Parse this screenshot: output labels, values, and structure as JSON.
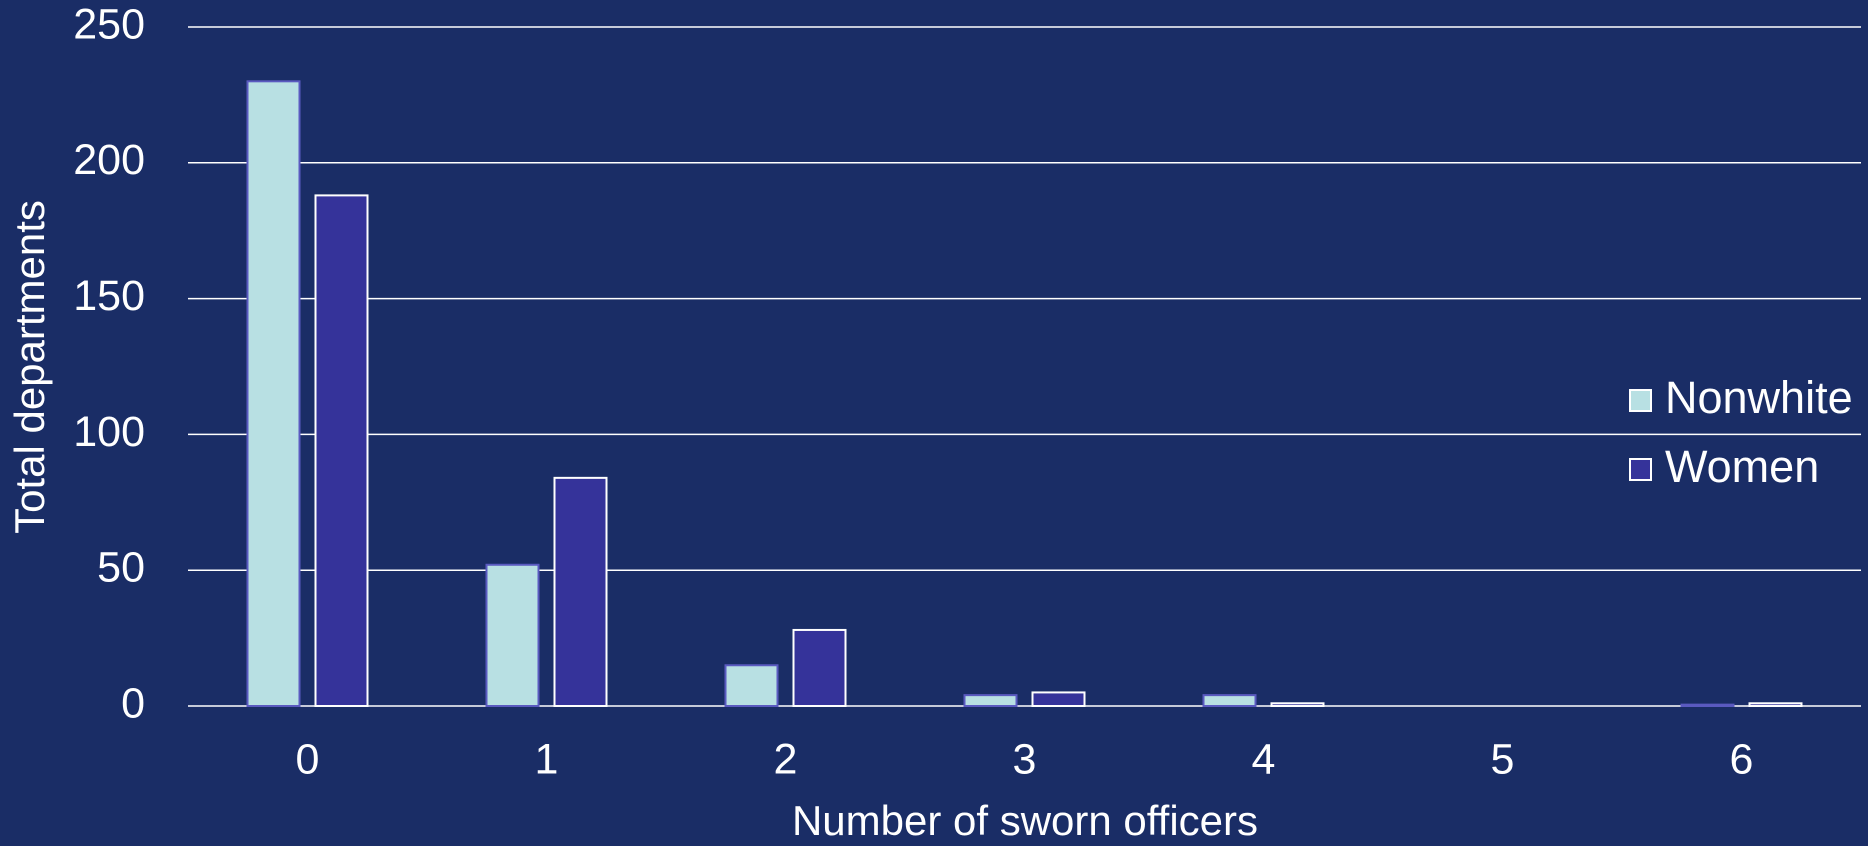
{
  "chart_data": {
    "type": "bar",
    "xlabel": "Number of sworn officers",
    "ylabel": "Total departments",
    "categories": [
      "0",
      "1",
      "2",
      "3",
      "4",
      "5",
      "6"
    ],
    "series": [
      {
        "name": "Nonwhite",
        "color": "#b8e0e3",
        "stroke": "#5a5ac0",
        "values": [
          230,
          52,
          15,
          4,
          4,
          0,
          0.5
        ]
      },
      {
        "name": "Women",
        "color": "#35339a",
        "stroke": "#ffffff",
        "values": [
          188,
          84,
          28,
          5,
          1,
          0,
          1
        ]
      }
    ],
    "ylim": [
      0,
      250
    ],
    "yticks": [
      0,
      50,
      100,
      150,
      200,
      250
    ],
    "grid": true,
    "legend": "right"
  }
}
